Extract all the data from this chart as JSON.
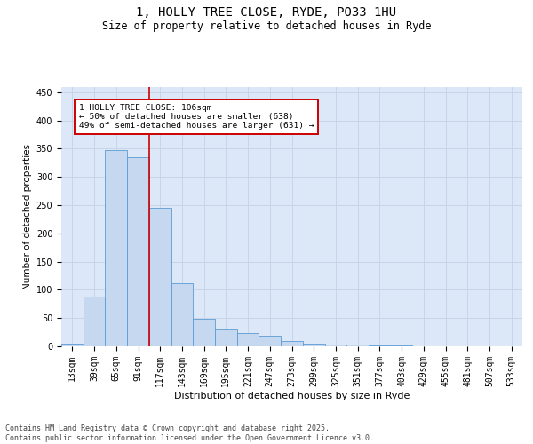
{
  "title_line1": "1, HOLLY TREE CLOSE, RYDE, PO33 1HU",
  "title_line2": "Size of property relative to detached houses in Ryde",
  "xlabel": "Distribution of detached houses by size in Ryde",
  "ylabel": "Number of detached properties",
  "categories": [
    "13sqm",
    "39sqm",
    "65sqm",
    "91sqm",
    "117sqm",
    "143sqm",
    "169sqm",
    "195sqm",
    "221sqm",
    "247sqm",
    "273sqm",
    "299sqm",
    "325sqm",
    "351sqm",
    "377sqm",
    "403sqm",
    "429sqm",
    "455sqm",
    "481sqm",
    "507sqm",
    "533sqm"
  ],
  "values": [
    5,
    88,
    348,
    335,
    245,
    112,
    49,
    30,
    24,
    19,
    9,
    4,
    3,
    3,
    2,
    1,
    0,
    0,
    0,
    0,
    0
  ],
  "bar_color": "#c5d8f0",
  "bar_edge_color": "#5b9bd5",
  "grid_color": "#c8d4e8",
  "background_color": "#dce8f8",
  "annotation_box_text": "1 HOLLY TREE CLOSE: 106sqm\n← 50% of detached houses are smaller (638)\n49% of semi-detached houses are larger (631) →",
  "annotation_box_color": "#ffffff",
  "annotation_box_edge_color": "#cc0000",
  "vline_x": 3.5,
  "vline_color": "#cc0000",
  "footer_text": "Contains HM Land Registry data © Crown copyright and database right 2025.\nContains public sector information licensed under the Open Government Licence v3.0.",
  "ylim": [
    0,
    460
  ],
  "yticks": [
    0,
    50,
    100,
    150,
    200,
    250,
    300,
    350,
    400,
    450
  ],
  "title1_fontsize": 10,
  "title2_fontsize": 8.5,
  "ylabel_fontsize": 7.5,
  "xlabel_fontsize": 8,
  "tick_fontsize": 7,
  "annot_fontsize": 6.8,
  "footer_fontsize": 6
}
